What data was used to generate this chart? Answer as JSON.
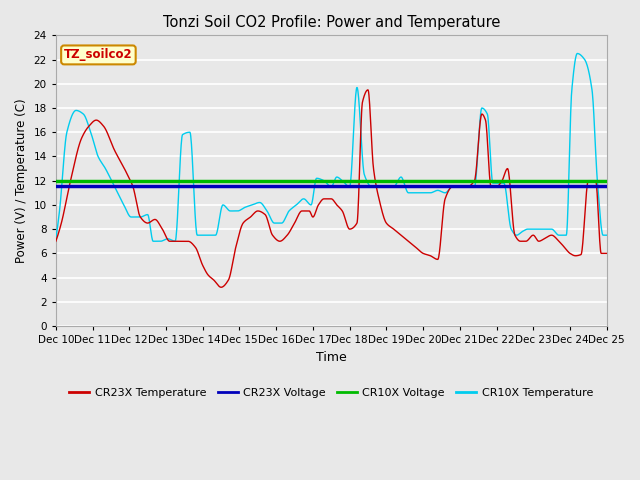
{
  "title": "Tonzi Soil CO2 Profile: Power and Temperature",
  "xlabel": "Time",
  "ylabel": "Power (V) / Temperature (C)",
  "ylim": [
    0,
    24
  ],
  "yticks": [
    0,
    2,
    4,
    6,
    8,
    10,
    12,
    14,
    16,
    18,
    20,
    22,
    24
  ],
  "xtick_labels": [
    "Dec 10",
    "Dec 11",
    "Dec 12",
    "Dec 13",
    "Dec 14",
    "Dec 15",
    "Dec 16",
    "Dec 17",
    "Dec 18",
    "Dec 19",
    "Dec 20",
    "Dec 21",
    "Dec 22",
    "Dec 23",
    "Dec 24",
    "Dec 25"
  ],
  "cr23x_voltage": 11.6,
  "cr10x_voltage": 11.95,
  "background_color": "#e8e8e8",
  "plot_bg_color": "#e8e8e8",
  "grid_color": "#ffffff",
  "cr23x_temp_color": "#cc0000",
  "cr23x_volt_color": "#0000bb",
  "cr10x_volt_color": "#00bb00",
  "cr10x_temp_color": "#00ccee",
  "annotation_text": "TZ_soilco2",
  "annotation_bg": "#ffffcc",
  "annotation_border": "#cc8800",
  "figsize": [
    6.4,
    4.8
  ],
  "dpi": 100
}
